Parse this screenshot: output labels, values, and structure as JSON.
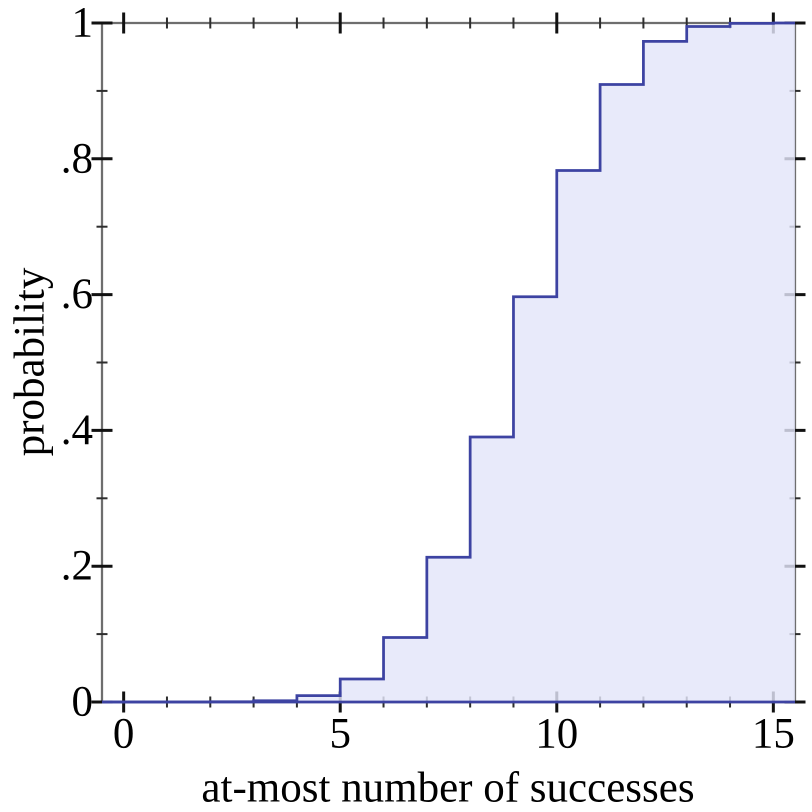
{
  "chart_data": {
    "type": "area",
    "subtype": "cdf-staircase",
    "title": "",
    "xlabel": "at-most number of successes",
    "ylabel": "probability",
    "categories": [
      0,
      1,
      2,
      3,
      4,
      5,
      6,
      7,
      8,
      9,
      10,
      11,
      12,
      13,
      14,
      15
    ],
    "values": [
      1e-06,
      2.5e-05,
      0.00028,
      0.0019,
      0.0093,
      0.0338,
      0.095,
      0.2131,
      0.3902,
      0.5968,
      0.7827,
      0.9095,
      0.9729,
      0.9948,
      0.9995,
      1.0
    ],
    "x_range": [
      -0.5,
      15.5
    ],
    "y_range": [
      0,
      1
    ],
    "x_major_ticks": [
      0,
      5,
      10,
      15
    ],
    "x_major_tick_labels": [
      "0",
      "5",
      "10",
      "15"
    ],
    "x_minor_ticks": [
      1,
      2,
      3,
      4,
      6,
      7,
      8,
      9,
      11,
      12,
      13,
      14
    ],
    "y_major_ticks": [
      0,
      0.2,
      0.4,
      0.6,
      0.8,
      1
    ],
    "y_major_tick_labels": [
      "0",
      ".2",
      ".4",
      ".6",
      ".8",
      "1"
    ],
    "y_minor_ticks": [
      0.1,
      0.3,
      0.5,
      0.7,
      0.9
    ],
    "grid": false,
    "legend_position": "none",
    "colors": {
      "line": "#3d43a2",
      "fill_rgba": "rgba(227,229,249,0.82)",
      "fill_flat": "#e8eafa",
      "frame": "#6e6e6e",
      "tick_major": "#111111",
      "tick_minor": "#2e2e2e",
      "text": "#000000",
      "background": "#ffffff"
    }
  }
}
